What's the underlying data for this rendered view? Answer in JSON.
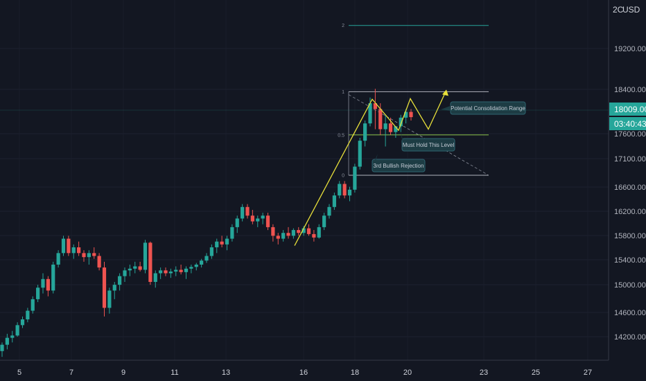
{
  "axis": {
    "currency": "USD",
    "top_label": "2C"
  },
  "price_tag": {
    "value": "18009.00",
    "countdown": "03:40:43",
    "color": "#26a69a"
  },
  "colors": {
    "background": "#131722",
    "up": "#26a69a",
    "down": "#ef5350",
    "pattern": "#e8e03a",
    "fib_level": "#8a8f9b",
    "annotation_fill": "#1d3c44",
    "annotation_border": "#2e6470"
  },
  "chart_data": {
    "type": "candlestick",
    "title": "",
    "ylim": [
      13800,
      20300
    ],
    "y_ticks": [
      "14200.00",
      "14600.00",
      "15000.00",
      "15400.00",
      "15800.00",
      "16200.00",
      "16600.00",
      "17100.00",
      "17600.00",
      "18400.00",
      "19200.00",
      "2C USD00"
    ],
    "x_ticks": [
      "5",
      "7",
      "9",
      "11",
      "13",
      "16",
      "18",
      "20",
      "23",
      "25",
      "27"
    ],
    "candles": [
      [
        13950,
        14100,
        13850,
        14060
      ],
      [
        14060,
        14250,
        13980,
        14180
      ],
      [
        14180,
        14300,
        14100,
        14220
      ],
      [
        14220,
        14450,
        14200,
        14400
      ],
      [
        14400,
        14550,
        14350,
        14500
      ],
      [
        14500,
        14700,
        14450,
        14650
      ],
      [
        14650,
        14900,
        14600,
        14850
      ],
      [
        14850,
        15100,
        14800,
        15050
      ],
      [
        15050,
        15300,
        14950,
        15200
      ],
      [
        15200,
        15250,
        14900,
        15000
      ],
      [
        15000,
        15500,
        14950,
        15450
      ],
      [
        15450,
        15700,
        15400,
        15650
      ],
      [
        15650,
        15950,
        15600,
        15900
      ],
      [
        15900,
        15950,
        15600,
        15650
      ],
      [
        15650,
        15800,
        15550,
        15750
      ],
      [
        15750,
        15850,
        15600,
        15650
      ],
      [
        15650,
        15700,
        15500,
        15580
      ],
      [
        15580,
        15700,
        15450,
        15650
      ],
      [
        15650,
        15750,
        15550,
        15600
      ],
      [
        15600,
        15650,
        15350,
        15400
      ],
      [
        15400,
        15500,
        14550,
        14700
      ],
      [
        14700,
        15050,
        14600,
        15000
      ],
      [
        15000,
        15150,
        14850,
        15100
      ],
      [
        15100,
        15300,
        15000,
        15250
      ],
      [
        15250,
        15400,
        15150,
        15350
      ],
      [
        15350,
        15450,
        15250,
        15380
      ],
      [
        15380,
        15500,
        15300,
        15420
      ],
      [
        15420,
        15500,
        15330,
        15360
      ],
      [
        15360,
        15880,
        15300,
        15830
      ],
      [
        15830,
        15850,
        15100,
        15150
      ],
      [
        15150,
        15350,
        15050,
        15300
      ],
      [
        15300,
        15400,
        15200,
        15350
      ],
      [
        15350,
        15400,
        15250,
        15300
      ],
      [
        15300,
        15380,
        15220,
        15330
      ],
      [
        15330,
        15420,
        15250,
        15360
      ],
      [
        15360,
        15450,
        15280,
        15320
      ],
      [
        15320,
        15420,
        15200,
        15380
      ],
      [
        15380,
        15450,
        15300,
        15410
      ],
      [
        15410,
        15480,
        15350,
        15450
      ],
      [
        15450,
        15550,
        15400,
        15520
      ],
      [
        15520,
        15650,
        15480,
        15600
      ],
      [
        15600,
        15800,
        15550,
        15750
      ],
      [
        15750,
        15900,
        15650,
        15850
      ],
      [
        15850,
        15950,
        15750,
        15800
      ],
      [
        15800,
        15950,
        15700,
        15900
      ],
      [
        15900,
        16150,
        15850,
        16100
      ],
      [
        16100,
        16300,
        16000,
        16250
      ],
      [
        16250,
        16500,
        16200,
        16450
      ],
      [
        16450,
        16500,
        16250,
        16300
      ],
      [
        16300,
        16400,
        16150,
        16200
      ],
      [
        16200,
        16300,
        16100,
        16250
      ],
      [
        16250,
        16350,
        16150,
        16300
      ],
      [
        16300,
        16350,
        16050,
        16100
      ],
      [
        16100,
        16150,
        15850,
        15950
      ],
      [
        15950,
        16000,
        15800,
        15900
      ],
      [
        15900,
        16050,
        15850,
        16000
      ],
      [
        16000,
        16100,
        15900,
        15950
      ],
      [
        15950,
        16080,
        15900,
        16050
      ],
      [
        16050,
        16100,
        15950,
        16000
      ],
      [
        16000,
        16120,
        15950,
        16080
      ],
      [
        16080,
        16150,
        15950,
        15980
      ],
      [
        15980,
        16050,
        15850,
        15920
      ],
      [
        15920,
        16150,
        15900,
        16100
      ],
      [
        16100,
        16350,
        16050,
        16300
      ],
      [
        16300,
        16500,
        16250,
        16450
      ],
      [
        16450,
        16700,
        16400,
        16650
      ],
      [
        16650,
        16900,
        16600,
        16850
      ],
      [
        16850,
        16900,
        16600,
        16650
      ],
      [
        16650,
        16800,
        16550,
        16750
      ],
      [
        16750,
        17200,
        16700,
        17150
      ],
      [
        17150,
        17650,
        17100,
        17600
      ],
      [
        17600,
        17950,
        17500,
        17900
      ],
      [
        17900,
        18350,
        17850,
        18250
      ],
      [
        18250,
        18500,
        17800,
        18150
      ],
      [
        18150,
        18250,
        17700,
        17800
      ],
      [
        17800,
        18050,
        17500,
        17900
      ],
      [
        17900,
        18000,
        17700,
        17750
      ],
      [
        17750,
        17850,
        17650,
        17850
      ],
      [
        17850,
        18050,
        17750,
        18000
      ],
      [
        18000,
        18150,
        17900,
        18100
      ],
      [
        18100,
        18150,
        17950,
        18009
      ]
    ],
    "fib_levels": [
      {
        "label": "2",
        "price": 19600
      },
      {
        "label": "1",
        "price": 18450
      },
      {
        "label": "0.5",
        "price": 17700
      },
      {
        "label": "0",
        "price": 17000
      }
    ],
    "annotations": [
      "Potential Consolidation Range",
      "Must Hold This Level",
      "3rd Bullish Rejection"
    ]
  }
}
